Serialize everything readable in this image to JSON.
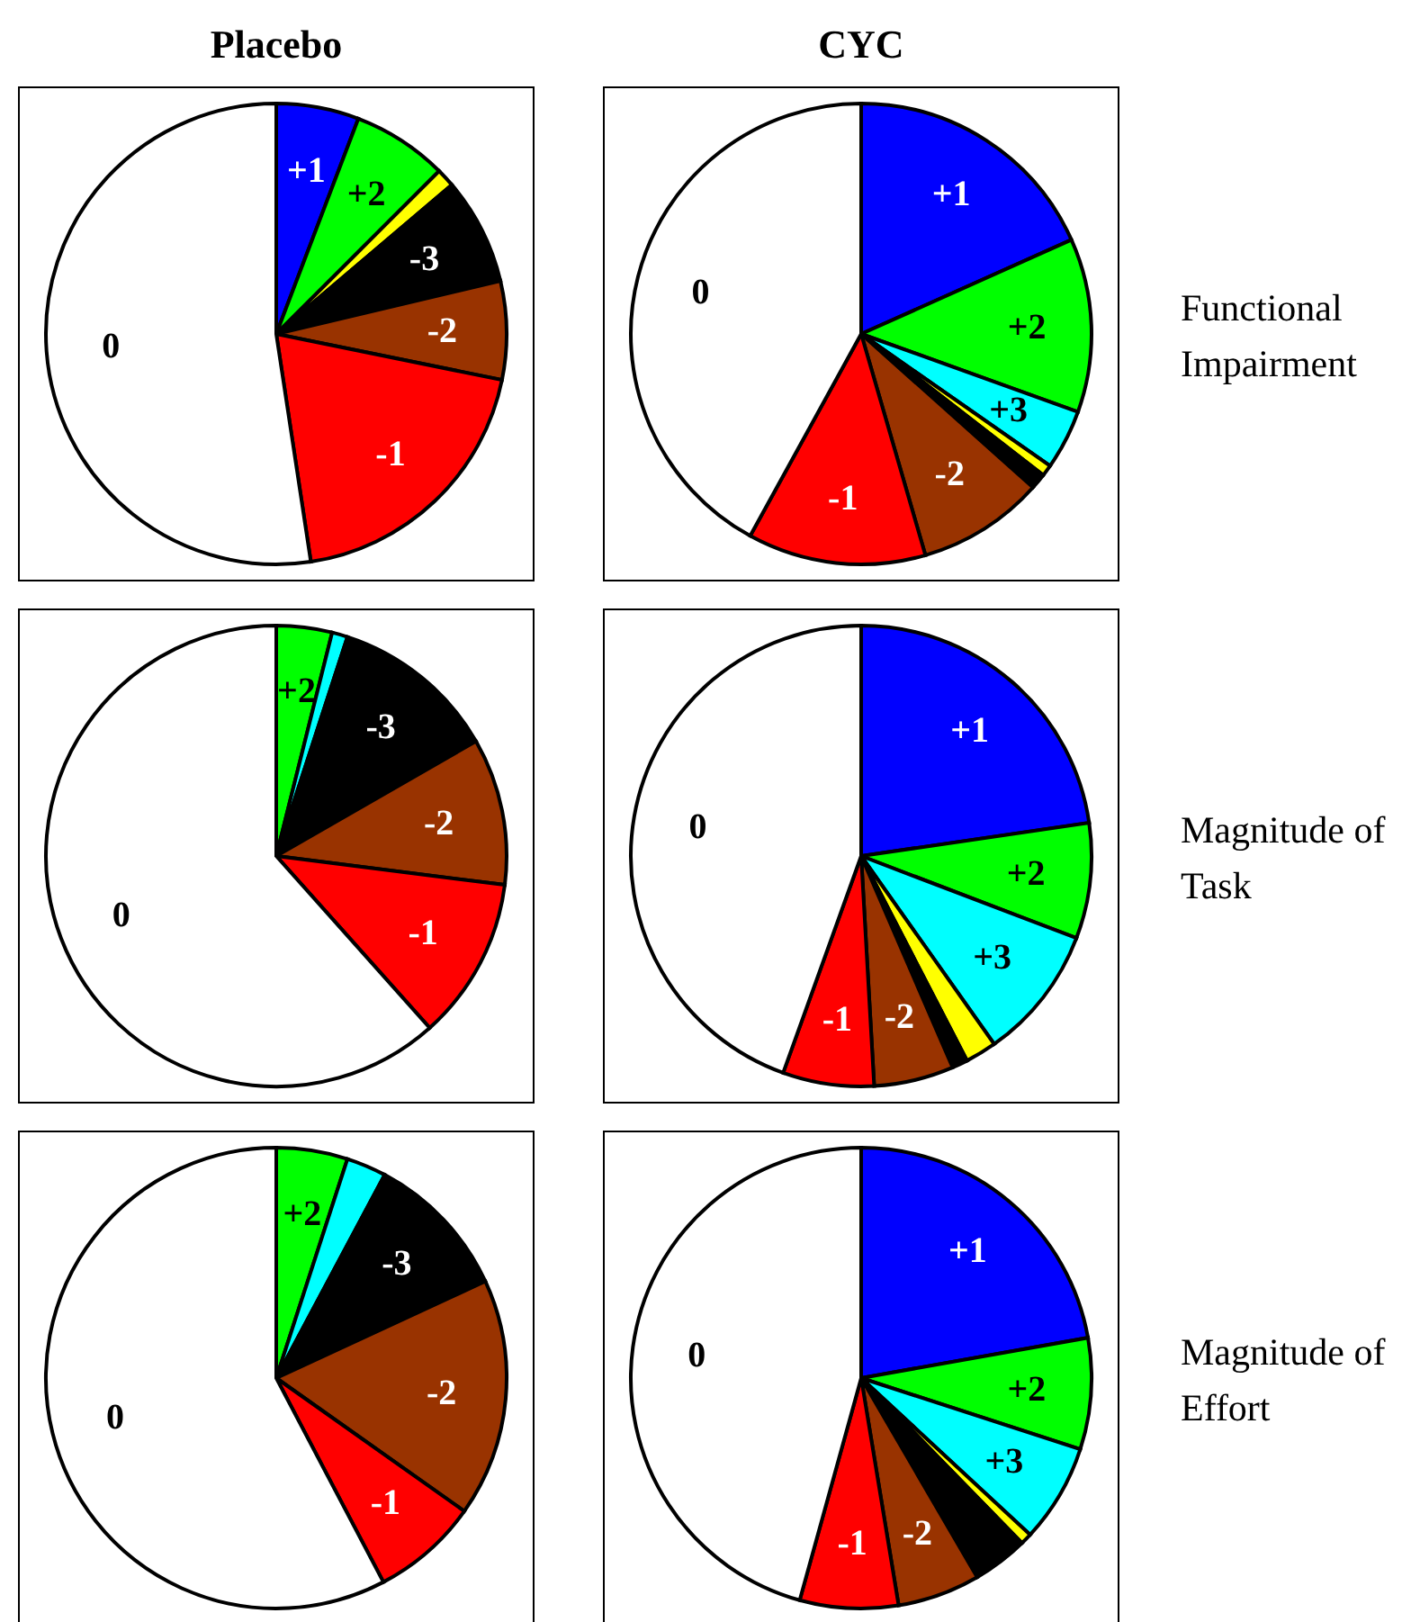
{
  "chart_data": [
    {
      "type": "pie",
      "title": "Placebo",
      "categories": [
        "+1",
        "+2",
        null,
        "-3",
        "-2",
        "-1",
        "0"
      ],
      "values": [
        5.8,
        6.7,
        1.3,
        7.5,
        6.9,
        19.4,
        52.4
      ],
      "colors": [
        "#0000ff",
        "#00ff00",
        "#ffff00",
        "#000000",
        "#993300",
        "#ff0000",
        "#ffffff"
      ]
    },
    {
      "type": "pie",
      "title": "CYC",
      "annotations": [
        "Functional Impairment"
      ],
      "categories": [
        "+1",
        "+2",
        "+3",
        null,
        null,
        "-2",
        "-1",
        "0"
      ],
      "values": [
        18.3,
        12.2,
        4.2,
        0.8,
        1.1,
        8.9,
        12.5,
        42
      ],
      "colors": [
        "#0000ff",
        "#00ff00",
        "#00ffff",
        "#ffff00",
        "#000000",
        "#993300",
        "#ff0000",
        "#ffffff"
      ]
    },
    {
      "type": "pie",
      "categories": [
        "+2",
        null,
        "-3",
        "-2",
        "-1",
        "0"
      ],
      "values": [
        3.9,
        1.1,
        11.7,
        10.3,
        11.4,
        61.6
      ],
      "colors": [
        "#00ff00",
        "#00ffff",
        "#000000",
        "#993300",
        "#ff0000",
        "#ffffff"
      ]
    },
    {
      "type": "pie",
      "annotations": [
        "Magnitude of Task"
      ],
      "categories": [
        "+1",
        "+2",
        "+3",
        null,
        null,
        "-2",
        "-1",
        "0"
      ],
      "values": [
        22.7,
        8.1,
        9.4,
        2.2,
        1.1,
        5.6,
        6.4,
        44.5
      ],
      "colors": [
        "#0000ff",
        "#00ff00",
        "#00ffff",
        "#ffff00",
        "#000000",
        "#993300",
        "#ff0000",
        "#ffffff"
      ]
    },
    {
      "type": "pie",
      "categories": [
        "+2",
        null,
        "-3",
        "-2",
        "-1",
        "0"
      ],
      "values": [
        5,
        2.8,
        10.3,
        16.7,
        7.5,
        57.7
      ],
      "colors": [
        "#00ff00",
        "#00ffff",
        "#000000",
        "#993300",
        "#ff0000",
        "#ffffff"
      ]
    },
    {
      "type": "pie",
      "annotations": [
        "Magnitude of Effort"
      ],
      "categories": [
        "+1",
        "+2",
        "+3",
        null,
        null,
        "-2",
        "-1",
        "0"
      ],
      "values": [
        22.2,
        7.8,
        6.9,
        0.8,
        3.9,
        5.8,
        6.9,
        45.7
      ],
      "colors": [
        "#0000ff",
        "#00ff00",
        "#00ffff",
        "#ffff00",
        "#000000",
        "#993300",
        "#ff0000",
        "#ffffff"
      ]
    }
  ]
}
